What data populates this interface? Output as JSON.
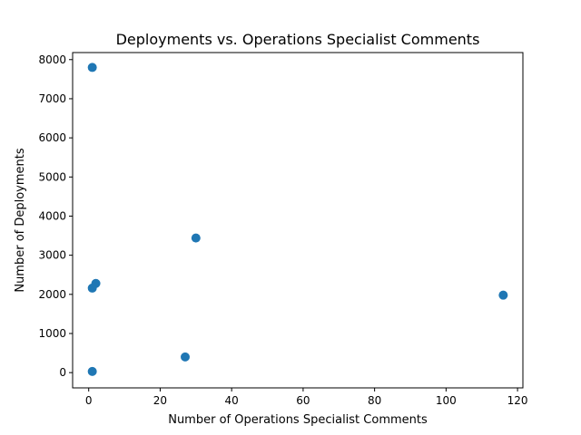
{
  "chart_data": {
    "type": "scatter",
    "title": "Deployments vs. Operations Specialist Comments",
    "xlabel": "Number of Operations Specialist Comments",
    "ylabel": "Number of Deployments",
    "xlim": [
      -4.5,
      121.5
    ],
    "ylim": [
      -390,
      8180
    ],
    "xticks": [
      0,
      20,
      40,
      60,
      80,
      100,
      120
    ],
    "yticks": [
      0,
      1000,
      2000,
      3000,
      4000,
      5000,
      6000,
      7000,
      8000
    ],
    "grid": false,
    "marker_color": "#1f77b4",
    "points": [
      {
        "x": 1,
        "y": 7800
      },
      {
        "x": 30,
        "y": 3440
      },
      {
        "x": 2,
        "y": 2280
      },
      {
        "x": 1,
        "y": 2160
      },
      {
        "x": 116,
        "y": 1980
      },
      {
        "x": 27,
        "y": 400
      },
      {
        "x": 1,
        "y": 30
      }
    ]
  }
}
